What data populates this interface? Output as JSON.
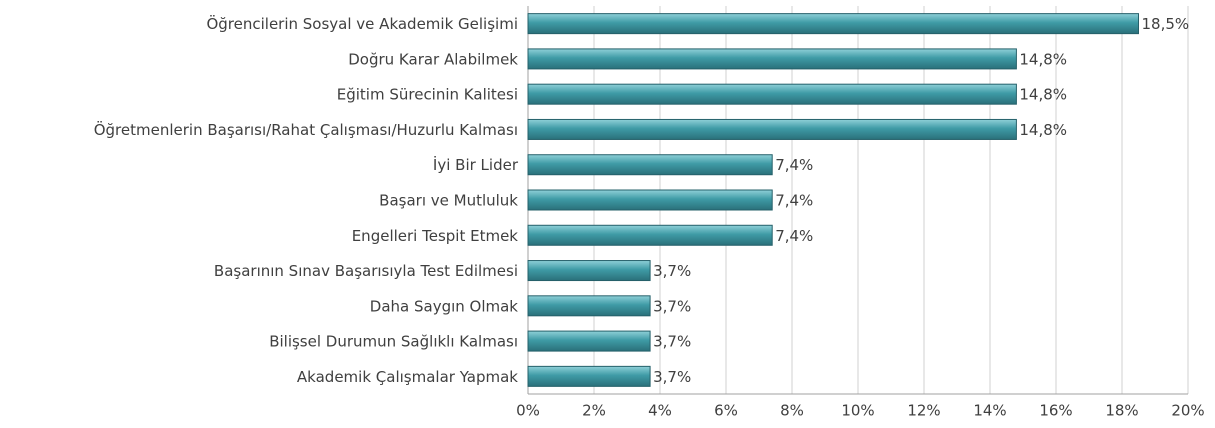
{
  "chart_data": {
    "type": "bar",
    "orientation": "horizontal",
    "categories": [
      "Öğrencilerin Sosyal ve Akademik Gelişimi",
      "Doğru Karar Alabilmek",
      "Eğitim Sürecinin Kalitesi",
      "Öğretmenlerin Başarısı/Rahat Çalışması/Huzurlu Kalması",
      "İyi Bir Lider",
      "Başarı ve Mutluluk",
      "Engelleri Tespit Etmek",
      "Başarının Sınav Başarısıyla Test Edilmesi",
      "Daha Saygın Olmak",
      "Bilişsel Durumun Sağlıklı Kalması",
      "Akademik Çalışmalar Yapmak"
    ],
    "values": [
      18.5,
      14.8,
      14.8,
      14.8,
      7.4,
      7.4,
      7.4,
      3.7,
      3.7,
      3.7,
      3.7
    ],
    "value_labels": [
      "18,5%",
      "14,8%",
      "14,8%",
      "14,8%",
      "7,4%",
      "7,4%",
      "7,4%",
      "3,7%",
      "3,7%",
      "3,7%",
      "3,7%"
    ],
    "color": "#3f9ba6",
    "xlim": [
      0,
      20
    ],
    "xticks": [
      {
        "value": 0,
        "label": "0%"
      },
      {
        "value": 2,
        "label": "2%"
      },
      {
        "value": 4,
        "label": "4%"
      },
      {
        "value": 6,
        "label": "6%"
      },
      {
        "value": 8,
        "label": "8%"
      },
      {
        "value": 10,
        "label": "10%"
      },
      {
        "value": 12,
        "label": "12%"
      },
      {
        "value": 14,
        "label": "14%"
      },
      {
        "value": 16,
        "label": "16%"
      },
      {
        "value": 18,
        "label": "18%"
      },
      {
        "value": 20,
        "label": "20%"
      }
    ],
    "grid": true
  }
}
